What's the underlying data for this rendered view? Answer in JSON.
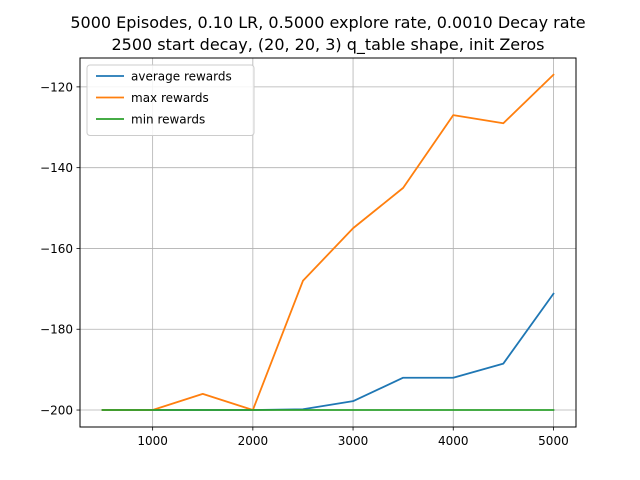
{
  "chart_data": {
    "type": "line",
    "title_line1": "5000 Episodes, 0.10 LR, 0.5000 explore rate, 0.0010 Decay rate",
    "title_line2": "2500 start decay, (20, 20, 3) q_table shape, init Zeros",
    "x": [
      500,
      1000,
      1500,
      2000,
      2500,
      3000,
      3500,
      4000,
      4500,
      5000
    ],
    "series": [
      {
        "name": "average rewards",
        "color": "#1f77b4",
        "values": [
          -200,
          -200,
          -200,
          -200,
          -199.8,
          -197.8,
          -192,
          -192,
          -188.5,
          -171.2
        ]
      },
      {
        "name": "max rewards",
        "color": "#ff7f0e",
        "values": [
          -200,
          -200,
          -196,
          -200,
          -168,
          -155,
          -145,
          -127,
          -129,
          -117
        ]
      },
      {
        "name": "min rewards",
        "color": "#2ca02c",
        "values": [
          -200,
          -200,
          -200,
          -200,
          -200,
          -200,
          -200,
          -200,
          -200,
          -200
        ]
      }
    ],
    "xlim": [
      275,
      5225
    ],
    "ylim": [
      -204.2,
      -112.85
    ],
    "xticks": [
      1000,
      2000,
      3000,
      4000,
      5000
    ],
    "yticks": [
      -200,
      -180,
      -160,
      -140,
      -120
    ],
    "xtick_labels": [
      "1000",
      "2000",
      "3000",
      "4000",
      "5000"
    ],
    "ytick_labels": [
      "−200",
      "−180",
      "−160",
      "−140",
      "−120"
    ],
    "grid": true,
    "legend_position": "upper-left"
  }
}
